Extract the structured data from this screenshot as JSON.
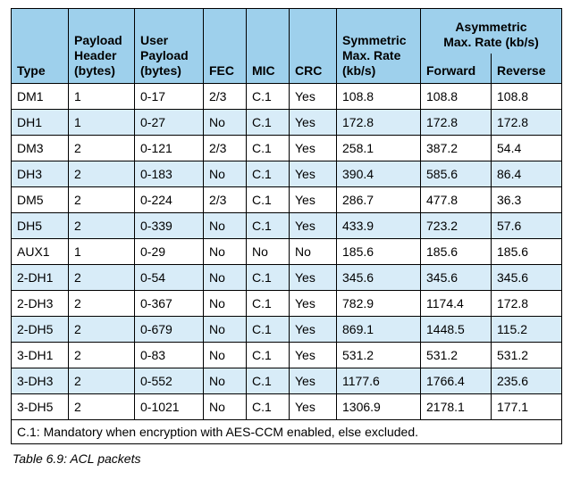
{
  "table": {
    "headers": {
      "type": "Type",
      "payload_header": [
        "Payload",
        "Header",
        "(bytes)"
      ],
      "user_payload": [
        "User",
        "Payload",
        "(bytes)"
      ],
      "fec": "FEC",
      "mic": "MIC",
      "crc": "CRC",
      "symmetric": [
        "Symmetric",
        "Max. Rate",
        "(kb/s)"
      ],
      "asymmetric": [
        "Asymmetric",
        "Max. Rate (kb/s)"
      ],
      "forward": "Forward",
      "reverse": "Reverse"
    },
    "rows": [
      [
        "DM1",
        "1",
        "0-17",
        "2/3",
        "C.1",
        "Yes",
        "108.8",
        "108.8",
        "108.8"
      ],
      [
        "DH1",
        "1",
        "0-27",
        "No",
        "C.1",
        "Yes",
        "172.8",
        "172.8",
        "172.8"
      ],
      [
        "DM3",
        "2",
        "0-121",
        "2/3",
        "C.1",
        "Yes",
        "258.1",
        "387.2",
        "54.4"
      ],
      [
        "DH3",
        "2",
        "0-183",
        "No",
        "C.1",
        "Yes",
        "390.4",
        "585.6",
        "86.4"
      ],
      [
        "DM5",
        "2",
        "0-224",
        "2/3",
        "C.1",
        "Yes",
        "286.7",
        "477.8",
        "36.3"
      ],
      [
        "DH5",
        "2",
        "0-339",
        "No",
        "C.1",
        "Yes",
        "433.9",
        "723.2",
        "57.6"
      ],
      [
        "AUX1",
        "1",
        "0-29",
        "No",
        "No",
        "No",
        "185.6",
        "185.6",
        "185.6"
      ],
      [
        "2-DH1",
        "2",
        "0-54",
        "No",
        "C.1",
        "Yes",
        "345.6",
        "345.6",
        "345.6"
      ],
      [
        "2-DH3",
        "2",
        "0-367",
        "No",
        "C.1",
        "Yes",
        "782.9",
        "1174.4",
        "172.8"
      ],
      [
        "2-DH5",
        "2",
        "0-679",
        "No",
        "C.1",
        "Yes",
        "869.1",
        "1448.5",
        "115.2"
      ],
      [
        "3-DH1",
        "2",
        "0-83",
        "No",
        "C.1",
        "Yes",
        "531.2",
        "531.2",
        "531.2"
      ],
      [
        "3-DH3",
        "2",
        "0-552",
        "No",
        "C.1",
        "Yes",
        "1177.6",
        "1766.4",
        "235.6"
      ],
      [
        "3-DH5",
        "2",
        "0-1021",
        "No",
        "C.1",
        "Yes",
        "1306.9",
        "2178.1",
        "177.1"
      ]
    ],
    "note": "C.1: Mandatory when encryption with AES-CCM enabled, else excluded."
  },
  "caption": "Table 6.9:  ACL packets",
  "colors": {
    "header_bg": "#9ed0ec",
    "stripe_bg": "#d8ecf8",
    "border": "#000000"
  }
}
